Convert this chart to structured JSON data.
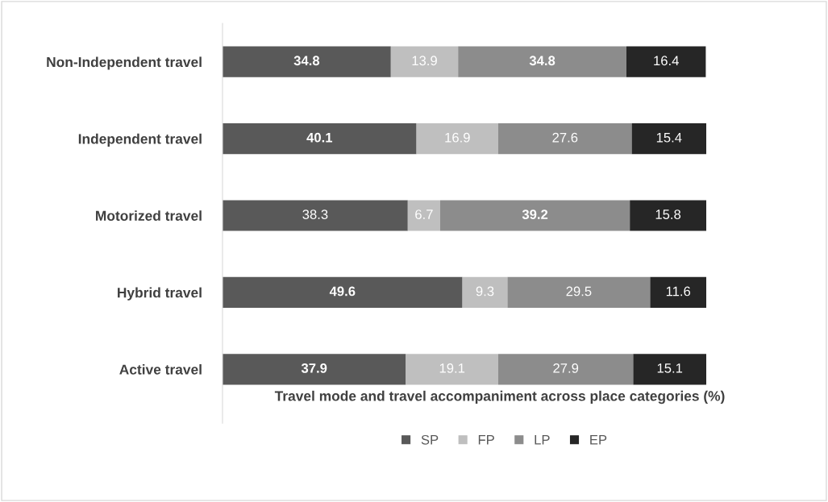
{
  "chart_data": {
    "type": "bar",
    "orientation": "horizontal",
    "stacked": true,
    "tick_labels": "y",
    "data_labels": true,
    "legend": "bottom",
    "grid": false,
    "xlabel": "Travel mode and travel accompaniment across place categories (%)",
    "categories": [
      "Non-Independent travel",
      "Independent travel",
      "Motorized travel",
      "Hybrid travel",
      "Active travel"
    ],
    "series": [
      {
        "name": "SP",
        "color": "#595959",
        "values": [
          34.8,
          40.1,
          38.3,
          49.6,
          37.9
        ]
      },
      {
        "name": "FP",
        "color": "#bfbfbf",
        "values": [
          13.9,
          16.9,
          6.7,
          9.3,
          19.1
        ]
      },
      {
        "name": "LP",
        "color": "#8c8c8c",
        "values": [
          34.8,
          27.6,
          39.2,
          29.5,
          27.9
        ]
      },
      {
        "name": "EP",
        "color": "#262626",
        "values": [
          16.4,
          15.4,
          15.8,
          11.6,
          15.1
        ]
      }
    ]
  }
}
